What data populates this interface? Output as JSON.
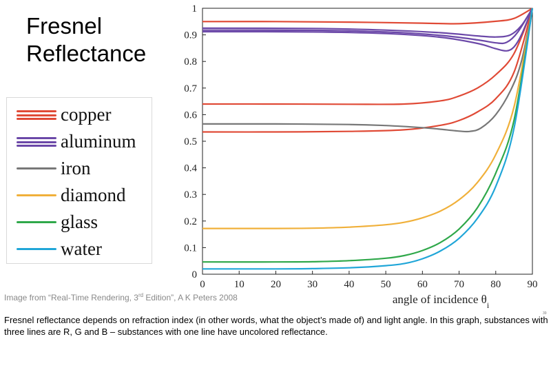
{
  "slide": {
    "title_line1": "Fresnel",
    "title_line2": "Reflectance",
    "credit_prefix": "Image from “Real-Time Rendering, 3",
    "credit_sup": "rd",
    "credit_suffix": " Edition”, A K Peters 2008",
    "page_number": "39",
    "caption": "Fresnel reflectance depends on refraction index (in other words, what the object’s made of) and light angle. In this graph,  substances with three lines are R, G and B – substances with one line have uncolored reflectance."
  },
  "legend": [
    {
      "label": "copper",
      "color": "#e04a36",
      "lines": 3
    },
    {
      "label": "aluminum",
      "color": "#6b48a8",
      "lines": 3
    },
    {
      "label": "iron",
      "color": "#777777",
      "lines": 1
    },
    {
      "label": "diamond",
      "color": "#f0b03a",
      "lines": 1
    },
    {
      "label": "glass",
      "color": "#2fa84a",
      "lines": 1
    },
    {
      "label": "water",
      "color": "#20a6d8",
      "lines": 1
    }
  ],
  "chart_data": {
    "type": "line",
    "xlabel": "angle of incidence θ",
    "xlabel_sub": "i",
    "ylabel": "",
    "xlim": [
      0,
      90
    ],
    "ylim": [
      0,
      1
    ],
    "xticks": [
      0,
      10,
      20,
      30,
      40,
      50,
      60,
      70,
      80,
      90
    ],
    "yticks": [
      0,
      0.1,
      0.2,
      0.3,
      0.4,
      0.5,
      0.6,
      0.7,
      0.8,
      0.9,
      1
    ],
    "ytick_labels": [
      "0",
      "0.1",
      "0.2",
      "0.3",
      "0.4",
      "0.5",
      "0.6",
      "0.7",
      "0.8",
      "0.9",
      "1"
    ],
    "grid": false,
    "series": [
      {
        "material": "copper",
        "color": "#e04a36",
        "points": [
          [
            0,
            0.95
          ],
          [
            20,
            0.95
          ],
          [
            40,
            0.948
          ],
          [
            60,
            0.944
          ],
          [
            70,
            0.942
          ],
          [
            80,
            0.951
          ],
          [
            85,
            0.962
          ],
          [
            90,
            1.0
          ]
        ]
      },
      {
        "material": "copper",
        "color": "#e04a36",
        "points": [
          [
            0,
            0.64
          ],
          [
            20,
            0.64
          ],
          [
            40,
            0.639
          ],
          [
            55,
            0.64
          ],
          [
            65,
            0.652
          ],
          [
            70,
            0.67
          ],
          [
            75,
            0.7
          ],
          [
            80,
            0.75
          ],
          [
            85,
            0.83
          ],
          [
            90,
            1.0
          ]
        ]
      },
      {
        "material": "copper",
        "color": "#e04a36",
        "points": [
          [
            0,
            0.535
          ],
          [
            20,
            0.535
          ],
          [
            40,
            0.537
          ],
          [
            55,
            0.543
          ],
          [
            65,
            0.56
          ],
          [
            70,
            0.578
          ],
          [
            75,
            0.61
          ],
          [
            80,
            0.66
          ],
          [
            85,
            0.76
          ],
          [
            90,
            1.0
          ]
        ]
      },
      {
        "material": "aluminum",
        "color": "#6b48a8",
        "points": [
          [
            0,
            0.925
          ],
          [
            30,
            0.924
          ],
          [
            50,
            0.918
          ],
          [
            65,
            0.908
          ],
          [
            75,
            0.896
          ],
          [
            80,
            0.892
          ],
          [
            84,
            0.9
          ],
          [
            87,
            0.935
          ],
          [
            90,
            1.0
          ]
        ]
      },
      {
        "material": "aluminum",
        "color": "#6b48a8",
        "points": [
          [
            0,
            0.918
          ],
          [
            30,
            0.917
          ],
          [
            50,
            0.911
          ],
          [
            65,
            0.898
          ],
          [
            75,
            0.881
          ],
          [
            80,
            0.87
          ],
          [
            83,
            0.872
          ],
          [
            86,
            0.91
          ],
          [
            90,
            1.0
          ]
        ]
      },
      {
        "material": "aluminum",
        "color": "#6b48a8",
        "points": [
          [
            0,
            0.912
          ],
          [
            30,
            0.911
          ],
          [
            50,
            0.905
          ],
          [
            65,
            0.891
          ],
          [
            75,
            0.868
          ],
          [
            80,
            0.848
          ],
          [
            83,
            0.84
          ],
          [
            85,
            0.855
          ],
          [
            87,
            0.9
          ],
          [
            90,
            1.0
          ]
        ]
      },
      {
        "material": "iron",
        "color": "#777777",
        "points": [
          [
            0,
            0.565
          ],
          [
            20,
            0.565
          ],
          [
            40,
            0.563
          ],
          [
            50,
            0.559
          ],
          [
            60,
            0.551
          ],
          [
            65,
            0.545
          ],
          [
            70,
            0.538
          ],
          [
            73,
            0.537
          ],
          [
            76,
            0.55
          ],
          [
            80,
            0.6
          ],
          [
            84,
            0.69
          ],
          [
            87,
            0.8
          ],
          [
            90,
            1.0
          ]
        ]
      },
      {
        "material": "diamond",
        "color": "#f0b03a",
        "points": [
          [
            0,
            0.172
          ],
          [
            20,
            0.172
          ],
          [
            30,
            0.173
          ],
          [
            40,
            0.177
          ],
          [
            50,
            0.186
          ],
          [
            55,
            0.195
          ],
          [
            60,
            0.212
          ],
          [
            65,
            0.238
          ],
          [
            70,
            0.28
          ],
          [
            75,
            0.345
          ],
          [
            80,
            0.45
          ],
          [
            85,
            0.63
          ],
          [
            90,
            1.0
          ]
        ]
      },
      {
        "material": "glass",
        "color": "#2fa84a",
        "points": [
          [
            0,
            0.046
          ],
          [
            20,
            0.046
          ],
          [
            30,
            0.047
          ],
          [
            40,
            0.051
          ],
          [
            50,
            0.06
          ],
          [
            55,
            0.07
          ],
          [
            60,
            0.089
          ],
          [
            65,
            0.12
          ],
          [
            70,
            0.17
          ],
          [
            75,
            0.25
          ],
          [
            80,
            0.38
          ],
          [
            85,
            0.58
          ],
          [
            90,
            1.0
          ]
        ]
      },
      {
        "material": "water",
        "color": "#20a6d8",
        "points": [
          [
            0,
            0.02
          ],
          [
            20,
            0.02
          ],
          [
            30,
            0.021
          ],
          [
            40,
            0.024
          ],
          [
            50,
            0.032
          ],
          [
            55,
            0.04
          ],
          [
            60,
            0.058
          ],
          [
            65,
            0.088
          ],
          [
            70,
            0.135
          ],
          [
            75,
            0.21
          ],
          [
            80,
            0.33
          ],
          [
            85,
            0.55
          ],
          [
            90,
            1.0
          ]
        ]
      }
    ]
  }
}
